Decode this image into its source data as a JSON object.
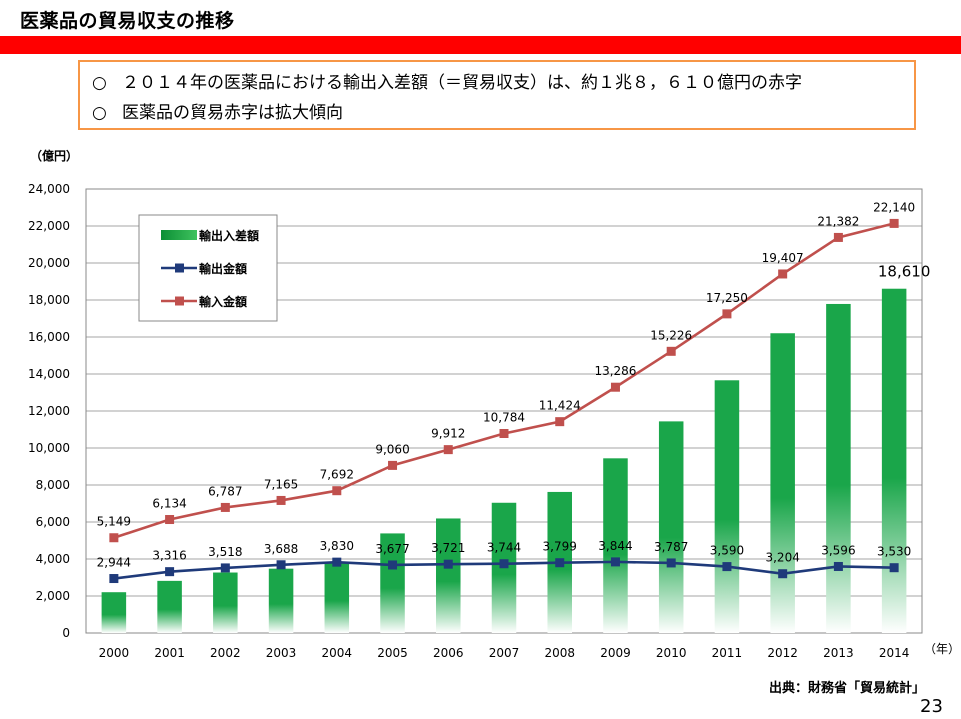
{
  "slide": {
    "title": "医薬品の貿易収支の推移",
    "summary": [
      {
        "marker": "○",
        "text": "２０１４年の医薬品における輸出入差額（＝貿易収支）は、約１兆８，６１０億円の赤字"
      },
      {
        "marker": "○",
        "text": "医薬品の貿易赤字は拡大傾向"
      }
    ],
    "source": "出典：財務省「貿易統計」",
    "page_number": "23"
  },
  "colors": {
    "bar": "#1aa64a",
    "export_line": "#1f3a7a",
    "import_line": "#c0504d",
    "title_bar": "#ff0000",
    "box_border": "#f79646"
  },
  "chart_data": {
    "type": "bar",
    "y_unit_label": "（億円）",
    "x_unit_label": "（年）",
    "ylim": [
      0,
      24000
    ],
    "y_ticks": [
      "0",
      "2,000",
      "4,000",
      "6,000",
      "8,000",
      "10,000",
      "12,000",
      "14,000",
      "16,000",
      "18,000",
      "20,000",
      "22,000",
      "24,000"
    ],
    "grid": true,
    "legend_position": "top-left",
    "categories": [
      "2000",
      "2001",
      "2002",
      "2003",
      "2004",
      "2005",
      "2006",
      "2007",
      "2008",
      "2009",
      "2010",
      "2011",
      "2012",
      "2013",
      "2014"
    ],
    "series": [
      {
        "name": "輸出入差額",
        "type": "bar",
        "values": [
          2205,
          2818,
          3269,
          3477,
          3862,
          5383,
          6191,
          7040,
          7625,
          9442,
          11439,
          13660,
          16203,
          17786,
          18610
        ],
        "labels": [
          "",
          "",
          "",
          "",
          "",
          "",
          "",
          "",
          "",
          "",
          "",
          "",
          "",
          "",
          "18,610"
        ]
      },
      {
        "name": "輸出金額",
        "type": "line",
        "values": [
          2944,
          3316,
          3518,
          3688,
          3830,
          3677,
          3721,
          3744,
          3799,
          3844,
          3787,
          3590,
          3204,
          3596,
          3530
        ],
        "labels": [
          "2,944",
          "3,316",
          "3,518",
          "3,688",
          "3,830",
          "3,677",
          "3,721",
          "3,744",
          "3,799",
          "3,844",
          "3,787",
          "3,590",
          "3,204",
          "3,596",
          "3,530"
        ]
      },
      {
        "name": "輸入金額",
        "type": "line",
        "values": [
          5149,
          6134,
          6787,
          7165,
          7692,
          9060,
          9912,
          10784,
          11424,
          13286,
          15226,
          17250,
          19407,
          21382,
          22140
        ],
        "labels": [
          "5,149",
          "6,134",
          "6,787",
          "7,165",
          "7,692",
          "9,060",
          "9,912",
          "10,784",
          "11,424",
          "13,286",
          "15,226",
          "17,250",
          "19,407",
          "21,382",
          "22,140"
        ]
      }
    ]
  }
}
